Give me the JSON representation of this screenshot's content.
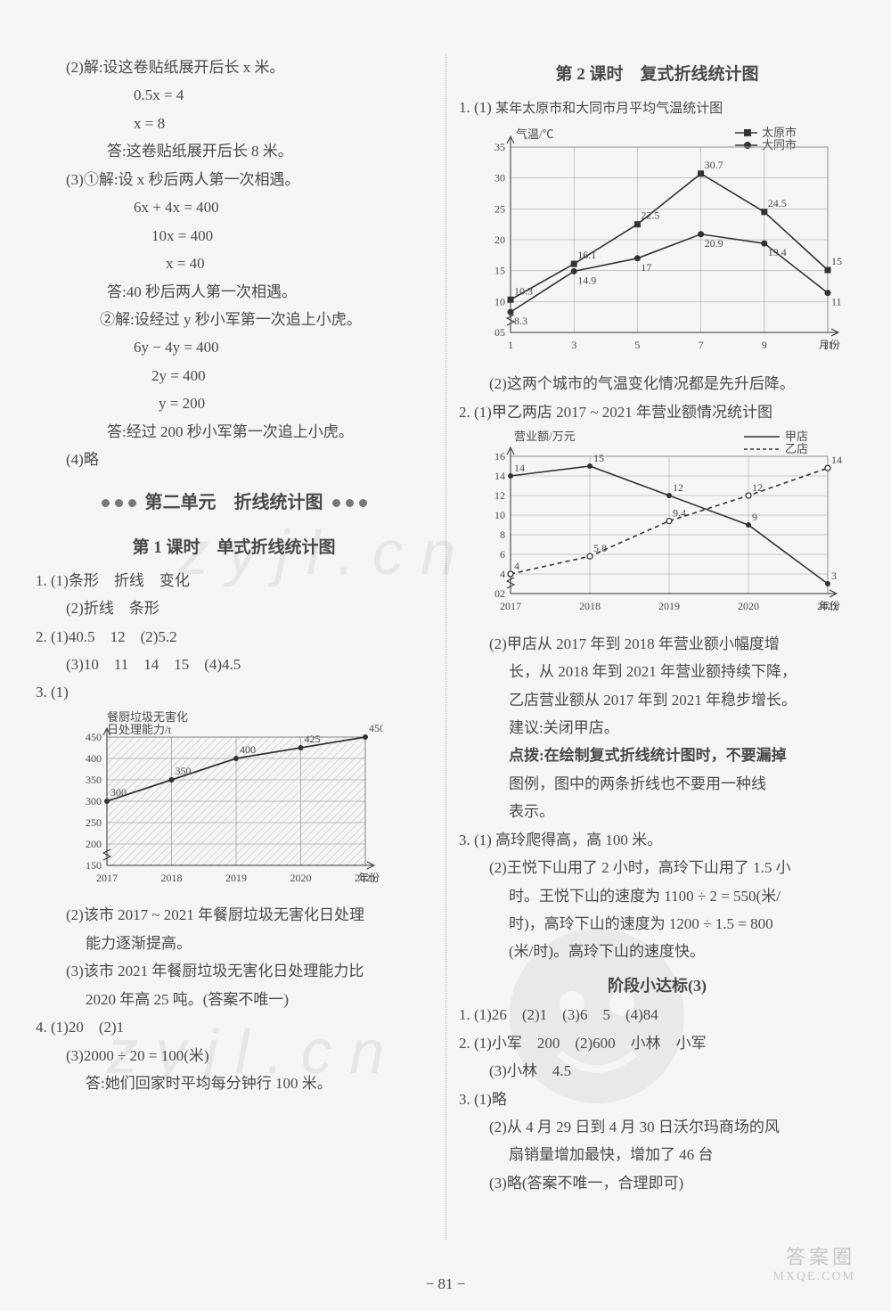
{
  "left": {
    "l2_title": "(2)解:设这卷贴纸展开后长 x 米。",
    "l2_eq1": "0.5x = 4",
    "l2_eq2": "x = 8",
    "l2_ans": "答:这卷贴纸展开后长 8 米。",
    "l3_title": "(3)①解:设 x 秒后两人第一次相遇。",
    "l3_eq1": "6x + 4x = 400",
    "l3_eq2": "10x = 400",
    "l3_eq3": "x = 40",
    "l3_ans": "答:40 秒后两人第一次相遇。",
    "l3b_title": "②解:设经过 y 秒小军第一次追上小虎。",
    "l3b_eq1": "6y − 4y = 400",
    "l3b_eq2": "2y = 400",
    "l3b_eq3": "y = 200",
    "l3b_ans": "答:经过 200 秒小军第一次追上小虎。",
    "l4": "(4)略",
    "unit2": "第二单元　折线统计图",
    "sec1": "第 1 课时　单式折线统计图",
    "q1_1": "1. (1)条形　折线　变化",
    "q1_2": "(2)折线　条形",
    "q2": "2. (1)40.5　12　(2)5.2",
    "q2b": "(3)10　11　14　15　(4)4.5",
    "q3": "3. (1)",
    "chart3": {
      "title1": "餐厨垃圾无害化",
      "title2": "日处理能力/t",
      "y_ticks": [
        150,
        200,
        250,
        300,
        350,
        400,
        450
      ],
      "x_labels": [
        "2017",
        "2018",
        "2019",
        "2020",
        "2021"
      ],
      "x_suffix": "年份",
      "values": [
        300,
        350,
        400,
        425,
        450
      ],
      "point_labels": [
        "300",
        "350",
        "400",
        "425",
        "450"
      ],
      "bg": "#ffffff",
      "grid": "#888",
      "line": "#333"
    },
    "q3_2a": "(2)该市 2017 ~ 2021 年餐厨垃圾无害化日处理",
    "q3_2b": "能力逐渐提高。",
    "q3_3a": "(3)该市 2021 年餐厨垃圾无害化日处理能力比",
    "q3_3b": "2020 年高 25 吨。(答案不唯一)",
    "q4_1": "4. (1)20　(2)1",
    "q4_2": "(3)2000 ÷ 20 = 100(米)",
    "q4_3": "答:她们回家时平均每分钟行 100 米。"
  },
  "right": {
    "sec2": "第 2 课时　复式折线统计图",
    "r1": "1. (1)",
    "chart1": {
      "title": "某年太原市和大同市月平均气温统计图",
      "legend_a": "太原市",
      "legend_b": "大同市",
      "y_label": "气温/℃",
      "y_ticks": [
        5,
        10,
        15,
        20,
        25,
        30,
        35
      ],
      "x_labels": [
        "1",
        "3",
        "5",
        "7",
        "9",
        "11"
      ],
      "x_suffix": "月份",
      "series_a": [
        10.3,
        16.1,
        22.5,
        30.7,
        24.5,
        15.1
      ],
      "series_a_labels": [
        "10.3",
        "16.1",
        "22.5",
        "30.7",
        "24.5",
        "15.1"
      ],
      "series_b": [
        8.3,
        14.9,
        17,
        20.9,
        19.4,
        11.4
      ],
      "series_b_labels": [
        "8.3",
        "14.9",
        "17",
        "20.9",
        "19.4",
        "11.4"
      ],
      "line": "#333",
      "bg": "#ffffff"
    },
    "r1_2": "(2)这两个城市的气温变化情况都是先升后降。",
    "r2": "2. (1)甲乙两店 2017 ~ 2021 年营业额情况统计图",
    "chart2": {
      "y_label": "营业额/万元",
      "legend_a": "甲店",
      "legend_b": "乙店",
      "y_ticks": [
        2,
        4,
        6,
        8,
        10,
        12,
        14,
        16
      ],
      "x_labels": [
        "2017",
        "2018",
        "2019",
        "2020",
        "2021"
      ],
      "x_suffix": "年份",
      "series_a": [
        14,
        15,
        12,
        9,
        3
      ],
      "series_a_labels": [
        "14",
        "15",
        "12",
        "9",
        "3"
      ],
      "series_b": [
        4,
        5.8,
        9.4,
        12,
        14.8
      ],
      "series_b_labels": [
        "4",
        "5.8",
        "9.4",
        "12",
        "14.8"
      ],
      "line": "#333",
      "bg": "#ffffff"
    },
    "r2_2a": "(2)甲店从 2017 年到 2018 年营业额小幅度增",
    "r2_2b": "长，从 2018 年到 2021 年营业额持续下降，",
    "r2_2c": "乙店营业额从 2017 年到 2021 年稳步增长。",
    "r2_2d": "建议:关闭甲店。",
    "r2_hint1": "点拨:在绘制复式折线统计图时，不要漏掉",
    "r2_hint2": "图例，图中的两条折线也不要用一种线",
    "r2_hint3": "表示。",
    "r3_1": "3. (1) 高玲爬得高，高 100 米。",
    "r3_2a": "(2)王悦下山用了 2 小时，高玲下山用了 1.5 小",
    "r3_2b": "时。王悦下山的速度为 1100 ÷ 2 = 550(米/",
    "r3_2c": "时)，高玲下山的速度为 1200 ÷ 1.5 = 800",
    "r3_2d": "(米/时)。高玲下山的速度快。",
    "stage": "阶段小达标(3)",
    "s1": "1. (1)26　(2)1　(3)6　5　(4)84",
    "s2a": "2. (1)小军　200　(2)600　小林　小军",
    "s2b": "(3)小林　4.5",
    "s3a": "3. (1)略",
    "s3b": "(2)从 4 月 29 日到 4 月 30 日沃尔玛商场的风",
    "s3c": "扇销量增加最快，增加了 46 台",
    "s3d": "(3)略(答案不唯一，合理即可)"
  },
  "page_num": "− 81 −",
  "wm1": "答案圈",
  "wm2": "MXQE.COM"
}
